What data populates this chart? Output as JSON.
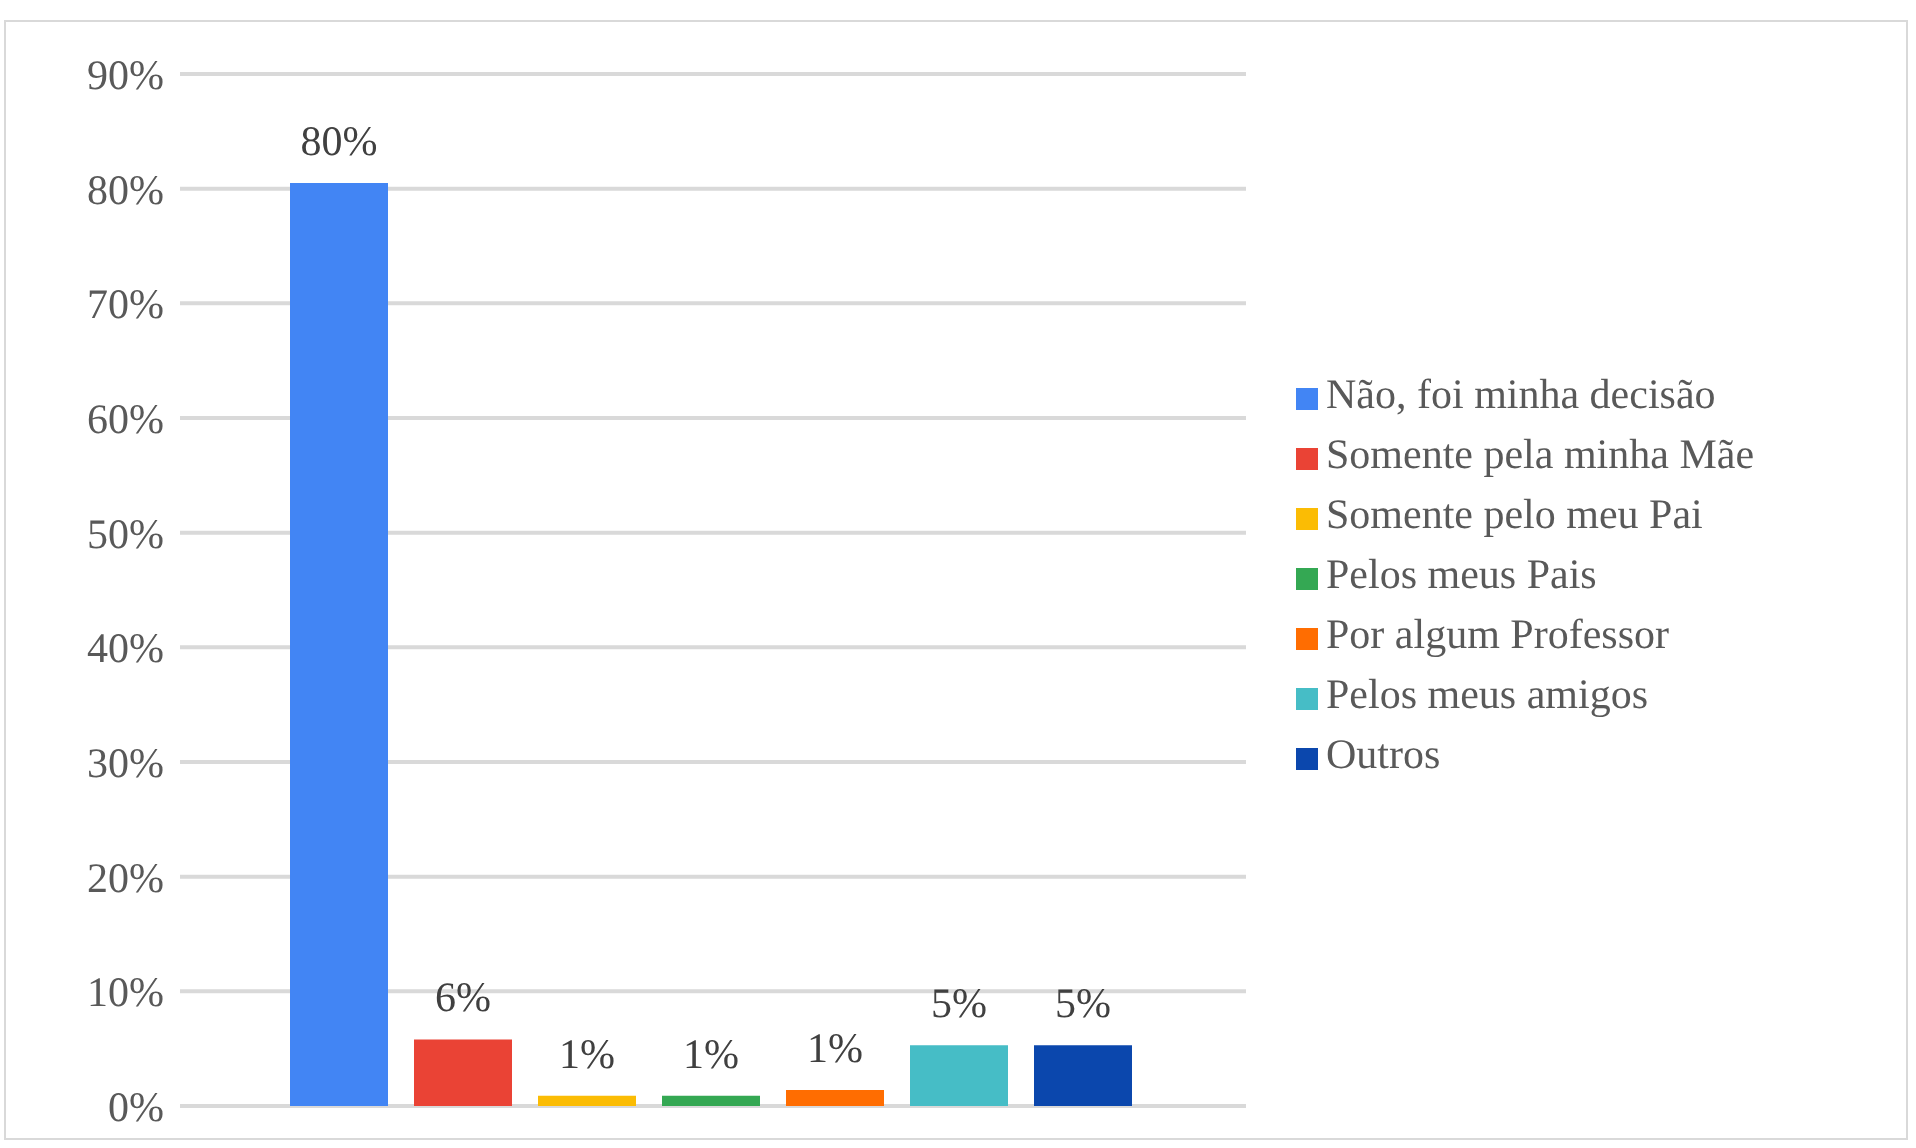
{
  "chart_data": {
    "type": "bar",
    "categories": [
      null
    ],
    "series": [
      {
        "name": "Não, foi minha decisão",
        "color": "#4285f4",
        "values": [
          80.5
        ],
        "value_labels": [
          "80%"
        ]
      },
      {
        "name": "Somente pela minha Mãe",
        "color": "#ea4335",
        "values": [
          5.8
        ],
        "value_labels": [
          "6%"
        ]
      },
      {
        "name": "Somente pelo meu Pai",
        "color": "#fbbc04",
        "values": [
          0.9
        ],
        "value_labels": [
          "1%"
        ]
      },
      {
        "name": "Pelos meus Pais",
        "color": "#34a853",
        "values": [
          0.9
        ],
        "value_labels": [
          "1%"
        ]
      },
      {
        "name": "Por algum Professor",
        "color": "#ff6d01",
        "values": [
          1.4
        ],
        "value_labels": [
          "1%"
        ]
      },
      {
        "name": "Pelos meus amigos",
        "color": "#46bdc6",
        "values": [
          5.3
        ],
        "value_labels": [
          "5%"
        ]
      },
      {
        "name": "Outros",
        "color": "#0b47ad",
        "values": [
          5.3
        ],
        "value_labels": [
          "5%"
        ]
      }
    ],
    "ylim": [
      0,
      90
    ],
    "yticks": [
      {
        "value": 0,
        "label": "0%"
      },
      {
        "value": 10,
        "label": "10%"
      },
      {
        "value": 20,
        "label": "20%"
      },
      {
        "value": 30,
        "label": "30%"
      },
      {
        "value": 40,
        "label": "40%"
      },
      {
        "value": 50,
        "label": "50%"
      },
      {
        "value": 60,
        "label": "60%"
      },
      {
        "value": 70,
        "label": "70%"
      },
      {
        "value": 80,
        "label": "80%"
      },
      {
        "value": 90,
        "label": "90%"
      }
    ],
    "grid": "y",
    "legend": "right"
  }
}
